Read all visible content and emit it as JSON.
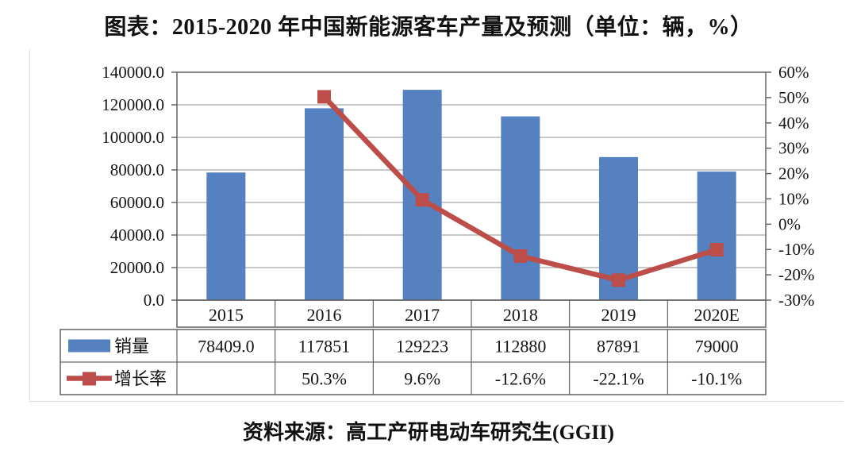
{
  "title": "图表：2015-2020 年中国新能源客车产量及预测（单位：辆，%）",
  "source": "资料来源：高工产研电动车研究生(GGII)",
  "colors": {
    "bar": "#5581c0",
    "line": "#bd4d49",
    "grid": "#a6a6a6",
    "axis": "#646464",
    "text": "#141414"
  },
  "chart_data": {
    "type": "bar",
    "subtype": "bar+line combo",
    "title": "图表：2015-2020 年中国新能源客车产量及预测（单位：辆，%）",
    "categories": [
      "2015",
      "2016",
      "2017",
      "2018",
      "2019",
      "2020E"
    ],
    "series": [
      {
        "name": "销量",
        "type": "bar",
        "axis": "left",
        "values": [
          78409,
          117851,
          129223,
          112880,
          87891,
          79000
        ]
      },
      {
        "name": "增长率",
        "type": "line",
        "axis": "right",
        "values": [
          null,
          50.3,
          9.6,
          -12.6,
          -22.1,
          -10.1
        ]
      }
    ],
    "left_axis": {
      "min": 0,
      "max": 140000,
      "step": 20000,
      "tick_labels": [
        "140000.0",
        "120000.0",
        "100000.0",
        "80000.0",
        "60000.0",
        "40000.0",
        "20000.0",
        "0.0"
      ]
    },
    "right_axis": {
      "min": -30,
      "max": 60,
      "step": 10,
      "tick_labels": [
        "60%",
        "50%",
        "40%",
        "30%",
        "20%",
        "10%",
        "0%",
        "-10%",
        "-20%",
        "-30%"
      ]
    },
    "grid": true,
    "legend_position": "bottom-table",
    "data_table": {
      "rows": [
        {
          "label": "销量",
          "key": "bar-swatch",
          "cells": [
            "78409.0",
            "117851",
            "129223",
            "112880",
            "87891",
            "79000"
          ]
        },
        {
          "label": "增长率",
          "key": "line-marker-swatch",
          "cells": [
            "",
            "50.3%",
            "9.6%",
            "-12.6%",
            "-22.1%",
            "-10.1%"
          ]
        }
      ]
    }
  }
}
